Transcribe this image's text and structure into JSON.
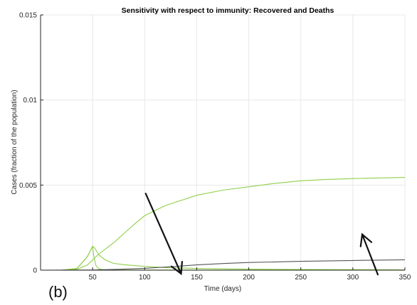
{
  "chart_data": {
    "type": "line",
    "title": "Sensitivity with respect to immunity: Recovered and Deaths",
    "xlabel": "Time (days)",
    "ylabel": "Cases (fraction of the population)",
    "xlim": [
      0,
      350
    ],
    "ylim": [
      0,
      0.015
    ],
    "x_ticks": [
      50,
      100,
      150,
      200,
      250,
      300,
      350
    ],
    "y_ticks": [
      {
        "value": 0,
        "label": "0"
      },
      {
        "value": 0.005,
        "label": "0.005"
      },
      {
        "value": 0.01,
        "label": "0.01"
      },
      {
        "value": 0.015,
        "label": "0.015"
      }
    ],
    "grid": true,
    "panel_label": "(b)",
    "colors": {
      "green": "#8fcf4a",
      "dark": "#555555",
      "arrow": "#111111",
      "grid": "#e8e8e8",
      "axis": "#262626"
    },
    "series": [
      {
        "color": "#8fcf4a",
        "x": [
          0,
          20,
          35,
          45,
          55,
          70,
          90,
          100,
          120,
          150,
          175,
          200,
          225,
          250,
          275,
          300,
          325,
          350
        ],
        "y": [
          0,
          0,
          5e-05,
          0.0003,
          0.0009,
          0.0016,
          0.0027,
          0.0032,
          0.0038,
          0.0044,
          0.0047,
          0.0049,
          0.0051,
          0.00525,
          0.00533,
          0.00538,
          0.00542,
          0.00545
        ]
      },
      {
        "color": "#8fcf4a",
        "x": [
          0,
          20,
          35,
          45,
          50,
          52,
          56,
          62,
          70,
          80,
          100,
          120,
          150,
          200,
          250,
          300,
          350
        ],
        "y": [
          0,
          0,
          0.0001,
          0.0008,
          0.0014,
          0.0013,
          0.0009,
          0.0006,
          0.0004,
          0.00032,
          0.00022,
          0.00015,
          0.0001,
          6e-05,
          4e-05,
          3e-05,
          2e-05
        ]
      },
      {
        "color": "#8fcf4a",
        "x": [
          0,
          20,
          35,
          45,
          50,
          51,
          53,
          56,
          60,
          70,
          100,
          200,
          350
        ],
        "y": [
          0,
          0,
          0.0001,
          0.0008,
          0.0014,
          0.0009,
          0.0003,
          8e-05,
          3e-05,
          1e-05,
          1e-05,
          1e-05,
          1e-05
        ]
      },
      {
        "color": "#555555",
        "x": [
          0,
          50,
          75,
          100,
          125,
          150,
          175,
          200,
          250,
          300,
          350
        ],
        "y": [
          0,
          1e-05,
          5e-05,
          0.00011,
          0.0002,
          0.00031,
          0.00039,
          0.00045,
          0.00052,
          0.00057,
          0.00061
        ]
      }
    ],
    "annotations": [
      {
        "type": "arrow",
        "from": [
          101,
          0.0045
        ],
        "to": [
          135,
          -0.00021
        ]
      },
      {
        "type": "arrow",
        "from": [
          324,
          -0.00026
        ],
        "to": [
          309,
          0.0021
        ]
      }
    ]
  }
}
